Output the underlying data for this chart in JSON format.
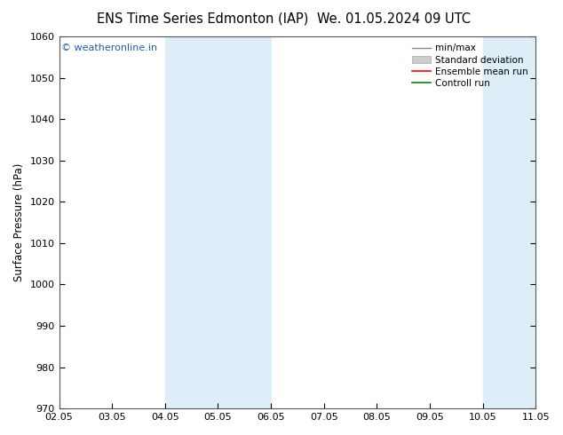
{
  "title1": "ENS Time Series Edmonton (IAP)",
  "title2": "We. 01.05.2024 09 UTC",
  "ylabel": "Surface Pressure (hPa)",
  "ylim": [
    970,
    1060
  ],
  "yticks": [
    970,
    980,
    990,
    1000,
    1010,
    1020,
    1030,
    1040,
    1050,
    1060
  ],
  "xtick_labels": [
    "02.05",
    "03.05",
    "04.05",
    "05.05",
    "06.05",
    "07.05",
    "08.05",
    "09.05",
    "10.05",
    "11.05"
  ],
  "shade_bands": [
    {
      "xstart": 2,
      "xend": 3,
      "color": "#ddeef9"
    },
    {
      "xstart": 3,
      "xend": 4,
      "color": "#ddeef9"
    },
    {
      "xstart": 8,
      "xend": 9,
      "color": "#ddeef9"
    },
    {
      "xstart": 9,
      "xend": 10,
      "color": "#ddeef9"
    }
  ],
  "watermark": "© weatheronline.in",
  "watermark_color": "#1a5fb4",
  "background_color": "#ffffff",
  "legend_items": [
    {
      "label": "min/max",
      "color": "#888888",
      "lw": 1.0,
      "linestyle": "-"
    },
    {
      "label": "Standard deviation",
      "color": "#cccccc",
      "lw": 6,
      "linestyle": "-"
    },
    {
      "label": "Ensemble mean run",
      "color": "#ff0000",
      "lw": 1.2,
      "linestyle": "-"
    },
    {
      "label": "Controll run",
      "color": "#008800",
      "lw": 1.2,
      "linestyle": "-"
    }
  ],
  "title_fontsize": 10.5,
  "axis_fontsize": 8.5,
  "tick_fontsize": 8.0,
  "legend_fontsize": 7.5
}
